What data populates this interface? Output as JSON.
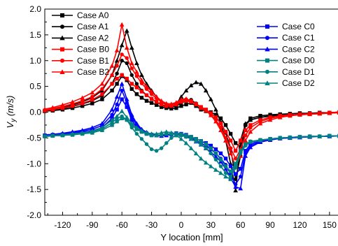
{
  "chart_data": {
    "type": "line",
    "xlabel": "Y location [mm]",
    "ylabel_main": "V",
    "ylabel_sub": "y",
    "ylabel_unit": "(m/s)",
    "xlim": [
      -138,
      160
    ],
    "ylim": [
      -2.0,
      2.0
    ],
    "x_ticks": [
      -120,
      -90,
      -60,
      -30,
      0,
      30,
      60,
      90,
      120,
      150
    ],
    "y_ticks": [
      2.0,
      1.5,
      1.0,
      0.5,
      0.0,
      -0.5,
      -1.0,
      -1.5,
      -2.0
    ],
    "y_tick_labels": [
      "2.0",
      "1.5",
      "1.0",
      "0.5",
      "0.0",
      "-0.5",
      "-1.0",
      "-1.5",
      "-2.0"
    ],
    "grid": false,
    "legend_left": [
      "Case A0",
      "Case A1",
      "Case A2",
      "Case B0",
      "Case B1",
      "Case B2"
    ],
    "legend_right": [
      "Case C0",
      "Case C1",
      "Case C2",
      "Case D0",
      "Case D1",
      "Case D2"
    ],
    "x": [
      -138,
      -130,
      -120,
      -110,
      -100,
      -90,
      -80,
      -70,
      -65,
      -60,
      -55,
      -50,
      -45,
      -40,
      -35,
      -30,
      -25,
      -20,
      -15,
      -10,
      -5,
      0,
      5,
      10,
      15,
      20,
      25,
      30,
      35,
      40,
      45,
      50,
      55,
      60,
      65,
      70,
      80,
      90,
      100,
      110,
      120,
      130,
      140,
      150,
      160
    ],
    "series": [
      {
        "name": "Case A0",
        "color": "#000000",
        "marker": "square",
        "values": [
          0.02,
          0.03,
          0.05,
          0.08,
          0.12,
          0.17,
          0.25,
          0.42,
          0.55,
          0.7,
          0.62,
          0.45,
          0.35,
          0.28,
          0.22,
          0.18,
          0.14,
          0.1,
          0.08,
          0.07,
          0.08,
          0.12,
          0.15,
          0.18,
          0.12,
          0.05,
          0.02,
          0.0,
          -0.05,
          -0.12,
          -0.25,
          -0.42,
          -0.6,
          -0.68,
          -0.25,
          -0.12,
          -0.07,
          -0.05,
          -0.04,
          -0.03,
          -0.02,
          -0.02,
          -0.01,
          -0.01,
          0.0
        ]
      },
      {
        "name": "Case A1",
        "color": "#000000",
        "marker": "circle",
        "values": [
          0.02,
          0.04,
          0.07,
          0.11,
          0.16,
          0.22,
          0.32,
          0.55,
          0.75,
          1.0,
          0.95,
          0.72,
          0.55,
          0.42,
          0.33,
          0.26,
          0.2,
          0.14,
          0.1,
          0.1,
          0.12,
          0.18,
          0.22,
          0.24,
          0.17,
          0.09,
          0.04,
          -0.02,
          -0.1,
          -0.2,
          -0.4,
          -0.7,
          -1.3,
          -0.85,
          -0.25,
          -0.15,
          -0.1,
          -0.07,
          -0.05,
          -0.04,
          -0.03,
          -0.02,
          -0.02,
          -0.01,
          0.0
        ]
      },
      {
        "name": "Case A2",
        "color": "#000000",
        "marker": "triangle",
        "values": [
          0.03,
          0.05,
          0.09,
          0.14,
          0.2,
          0.28,
          0.42,
          0.72,
          1.0,
          1.3,
          1.58,
          1.25,
          0.95,
          0.72,
          0.55,
          0.42,
          0.3,
          0.2,
          0.14,
          0.12,
          0.16,
          0.3,
          0.42,
          0.52,
          0.58,
          0.55,
          0.42,
          0.25,
          0.05,
          -0.2,
          -0.55,
          -1.0,
          -1.52,
          -0.55,
          -0.22,
          -0.15,
          -0.1,
          -0.08,
          -0.06,
          -0.05,
          -0.04,
          -0.03,
          -0.02,
          -0.01,
          0.0
        ]
      },
      {
        "name": "Case B0",
        "color": "#ff0000",
        "marker": "square",
        "values": [
          0.03,
          0.05,
          0.08,
          0.12,
          0.17,
          0.24,
          0.35,
          0.55,
          0.65,
          0.72,
          0.65,
          0.55,
          0.48,
          0.4,
          0.33,
          0.26,
          0.2,
          0.15,
          0.12,
          0.12,
          0.15,
          0.2,
          0.22,
          0.2,
          0.16,
          0.1,
          0.05,
          -0.02,
          -0.1,
          -0.22,
          -0.38,
          -0.55,
          -0.75,
          -0.55,
          -0.35,
          -0.25,
          -0.15,
          -0.1,
          -0.07,
          -0.05,
          -0.04,
          -0.03,
          -0.02,
          -0.01,
          0.0
        ]
      },
      {
        "name": "Case B1",
        "color": "#ff0000",
        "marker": "circle",
        "values": [
          0.04,
          0.07,
          0.11,
          0.16,
          0.22,
          0.3,
          0.45,
          0.72,
          0.9,
          1.12,
          1.05,
          0.85,
          0.7,
          0.56,
          0.45,
          0.35,
          0.27,
          0.2,
          0.15,
          0.14,
          0.17,
          0.22,
          0.25,
          0.22,
          0.16,
          0.09,
          0.04,
          -0.05,
          -0.15,
          -0.3,
          -0.5,
          -0.7,
          -0.9,
          -0.72,
          -0.45,
          -0.3,
          -0.18,
          -0.12,
          -0.08,
          -0.06,
          -0.05,
          -0.04,
          -0.03,
          -0.02,
          -0.01
        ]
      },
      {
        "name": "Case B2",
        "color": "#ff0000",
        "marker": "triangle",
        "values": [
          0.06,
          0.09,
          0.14,
          0.2,
          0.28,
          0.38,
          0.55,
          0.9,
          1.2,
          1.7,
          1.25,
          0.95,
          0.78,
          0.62,
          0.5,
          0.4,
          0.3,
          0.22,
          0.17,
          0.16,
          0.19,
          0.25,
          0.26,
          0.22,
          0.15,
          0.08,
          0.03,
          -0.06,
          -0.18,
          -0.35,
          -0.55,
          -0.8,
          -1.05,
          -0.85,
          -0.55,
          -0.38,
          -0.22,
          -0.15,
          -0.1,
          -0.07,
          -0.05,
          -0.04,
          -0.03,
          -0.02,
          -0.01
        ]
      },
      {
        "name": "Case C0",
        "color": "#0000ff",
        "marker": "square",
        "values": [
          -0.45,
          -0.44,
          -0.43,
          -0.41,
          -0.39,
          -0.36,
          -0.3,
          -0.12,
          0.05,
          0.25,
          0.1,
          -0.15,
          -0.3,
          -0.38,
          -0.42,
          -0.44,
          -0.45,
          -0.45,
          -0.43,
          -0.42,
          -0.41,
          -0.42,
          -0.44,
          -0.48,
          -0.52,
          -0.56,
          -0.6,
          -0.65,
          -0.72,
          -0.8,
          -0.9,
          -1.05,
          -1.2,
          -1.1,
          -0.75,
          -0.62,
          -0.55,
          -0.52,
          -0.5,
          -0.49,
          -0.48,
          -0.47,
          -0.47,
          -0.46,
          -0.46
        ]
      },
      {
        "name": "Case C1",
        "color": "#0000ff",
        "marker": "circle",
        "values": [
          -0.45,
          -0.44,
          -0.42,
          -0.4,
          -0.37,
          -0.33,
          -0.26,
          -0.05,
          0.15,
          0.42,
          0.18,
          -0.1,
          -0.25,
          -0.35,
          -0.4,
          -0.43,
          -0.45,
          -0.46,
          -0.44,
          -0.42,
          -0.41,
          -0.43,
          -0.46,
          -0.5,
          -0.55,
          -0.6,
          -0.66,
          -0.72,
          -0.8,
          -0.9,
          -1.02,
          -1.2,
          -1.4,
          -1.25,
          -0.8,
          -0.65,
          -0.57,
          -0.53,
          -0.51,
          -0.49,
          -0.48,
          -0.47,
          -0.47,
          -0.46,
          -0.46
        ]
      },
      {
        "name": "Case C2",
        "color": "#0000ff",
        "marker": "triangle",
        "values": [
          -0.44,
          -0.43,
          -0.41,
          -0.38,
          -0.35,
          -0.3,
          -0.22,
          0.05,
          0.3,
          0.55,
          0.25,
          -0.05,
          -0.22,
          -0.33,
          -0.39,
          -0.43,
          -0.45,
          -0.46,
          -0.45,
          -0.43,
          -0.42,
          -0.44,
          -0.47,
          -0.52,
          -0.57,
          -0.63,
          -0.7,
          -0.78,
          -0.86,
          -0.96,
          -1.1,
          -1.28,
          -1.45,
          -1.48,
          -0.85,
          -0.68,
          -0.58,
          -0.54,
          -0.51,
          -0.5,
          -0.49,
          -0.48,
          -0.47,
          -0.47,
          -0.46
        ]
      },
      {
        "name": "Case D0",
        "color": "#008080",
        "marker": "square",
        "values": [
          -0.47,
          -0.46,
          -0.45,
          -0.44,
          -0.42,
          -0.4,
          -0.35,
          -0.25,
          -0.18,
          -0.12,
          -0.15,
          -0.25,
          -0.33,
          -0.38,
          -0.42,
          -0.45,
          -0.45,
          -0.44,
          -0.42,
          -0.42,
          -0.42,
          -0.43,
          -0.45,
          -0.48,
          -0.52,
          -0.56,
          -0.62,
          -0.7,
          -0.8,
          -0.92,
          -1.05,
          -1.15,
          -1.0,
          -0.75,
          -0.62,
          -0.57,
          -0.54,
          -0.52,
          -0.5,
          -0.49,
          -0.48,
          -0.47,
          -0.47,
          -0.46,
          -0.46
        ]
      },
      {
        "name": "Case D1",
        "color": "#008080",
        "marker": "circle",
        "values": [
          -0.47,
          -0.46,
          -0.45,
          -0.43,
          -0.41,
          -0.38,
          -0.33,
          -0.2,
          -0.12,
          -0.08,
          -0.15,
          -0.3,
          -0.42,
          -0.52,
          -0.62,
          -0.72,
          -0.75,
          -0.7,
          -0.6,
          -0.5,
          -0.45,
          -0.45,
          -0.48,
          -0.52,
          -0.57,
          -0.63,
          -0.7,
          -0.8,
          -0.92,
          -1.05,
          -1.18,
          -1.25,
          -1.08,
          -0.8,
          -0.65,
          -0.58,
          -0.55,
          -0.52,
          -0.5,
          -0.49,
          -0.48,
          -0.47,
          -0.47,
          -0.46,
          -0.46
        ]
      },
      {
        "name": "Case D2",
        "color": "#008080",
        "marker": "triangle",
        "values": [
          -0.46,
          -0.45,
          -0.44,
          -0.42,
          -0.4,
          -0.37,
          -0.3,
          -0.15,
          -0.08,
          0.02,
          -0.1,
          -0.22,
          -0.3,
          -0.36,
          -0.4,
          -0.42,
          -0.42,
          -0.4,
          -0.38,
          -0.4,
          -0.45,
          -0.52,
          -0.6,
          -0.7,
          -0.8,
          -0.9,
          -0.98,
          -1.05,
          -1.12,
          -1.18,
          -1.25,
          -1.3,
          -1.02,
          -0.75,
          -0.62,
          -0.57,
          -0.54,
          -0.52,
          -0.5,
          -0.49,
          -0.48,
          -0.47,
          -0.47,
          -0.46,
          -0.46
        ]
      }
    ]
  }
}
